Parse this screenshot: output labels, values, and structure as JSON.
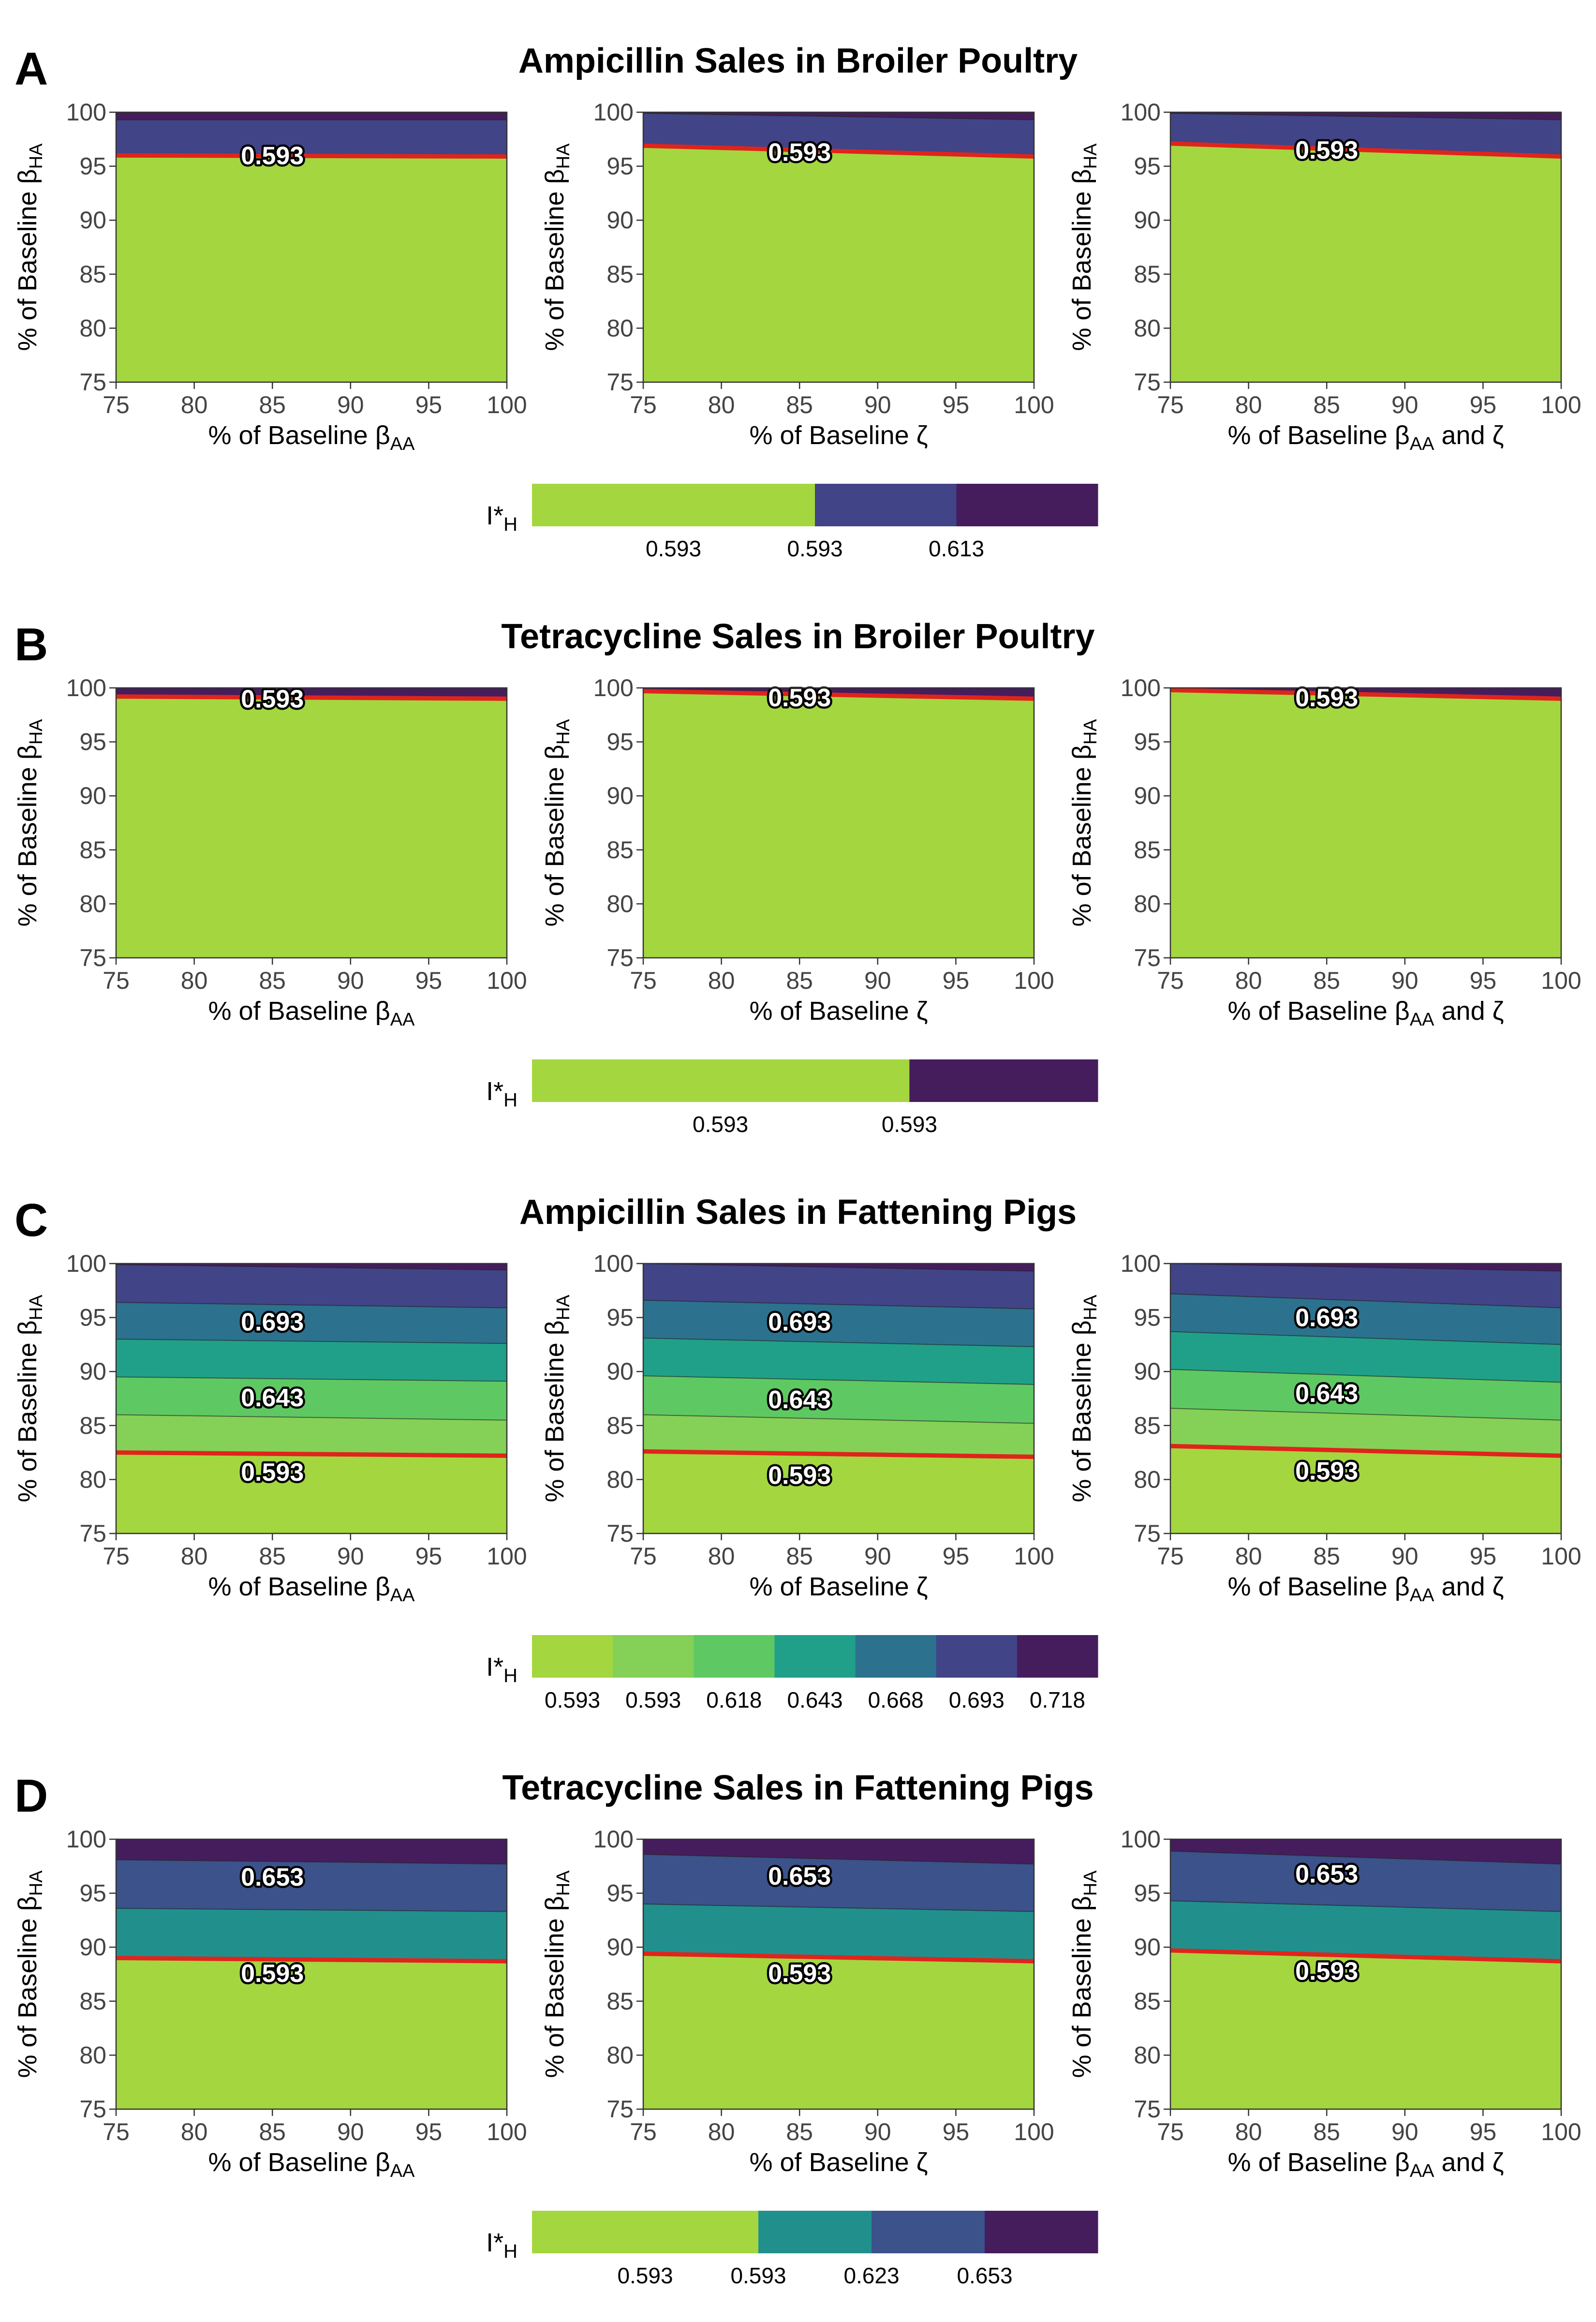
{
  "chart_data": [
    {
      "panel_letter": "A",
      "title": "Ampicillin Sales in Broiler Poultry",
      "type": "filled-contour",
      "metric_label": "I*",
      "metric_sub": "H",
      "x_range": [
        75,
        100
      ],
      "y_range": [
        75,
        100
      ],
      "x_ticks": [
        75,
        80,
        85,
        90,
        95,
        100
      ],
      "y_ticks": [
        75,
        80,
        85,
        90,
        95,
        100
      ],
      "colors": [
        "#a4d63f",
        "#414487",
        "#451d5d"
      ],
      "legend_labels": [
        "0.593",
        "0.593",
        "0.613"
      ],
      "red_color": "#e0241b",
      "subplots": [
        {
          "xlabel": "% of Baseline β",
          "xlabel_sub": "AA",
          "xlabel_suffix": "",
          "ylabel": "% of Baseline β",
          "ylabel_sub": "HA",
          "boundaries": [
            [
              96.0,
              95.9
            ],
            [
              99.3,
              99.3
            ]
          ],
          "red_line": [
            96.0,
            95.9
          ],
          "contour_labels": [
            {
              "x": 85,
              "y": 96.0,
              "text": "0.593"
            }
          ]
        },
        {
          "xlabel": "% of Baseline ζ",
          "xlabel_sub": "",
          "xlabel_suffix": "",
          "ylabel": "% of Baseline β",
          "ylabel_sub": "HA",
          "boundaries": [
            [
              96.9,
              95.9
            ],
            [
              99.9,
              99.3
            ]
          ],
          "red_line": [
            96.9,
            95.9
          ],
          "contour_labels": [
            {
              "x": 85,
              "y": 96.3,
              "text": "0.593"
            }
          ]
        },
        {
          "xlabel": "% of Baseline β",
          "xlabel_sub": "AA",
          "xlabel_suffix": " and ζ",
          "ylabel": "% of Baseline β",
          "ylabel_sub": "HA",
          "boundaries": [
            [
              97.1,
              95.9
            ],
            [
              99.9,
              99.3
            ]
          ],
          "red_line": [
            97.1,
            95.9
          ],
          "contour_labels": [
            {
              "x": 85,
              "y": 96.5,
              "text": "0.593"
            }
          ]
        }
      ]
    },
    {
      "panel_letter": "B",
      "title": "Tetracycline Sales in Broiler Poultry",
      "type": "filled-contour",
      "metric_label": "I*",
      "metric_sub": "H",
      "x_range": [
        75,
        100
      ],
      "y_range": [
        75,
        100
      ],
      "x_ticks": [
        75,
        80,
        85,
        90,
        95,
        100
      ],
      "y_ticks": [
        75,
        80,
        85,
        90,
        95,
        100
      ],
      "colors": [
        "#a4d63f",
        "#451d5d"
      ],
      "legend_labels": [
        "0.593",
        "0.593"
      ],
      "red_color": "#e0241b",
      "subplots": [
        {
          "xlabel": "% of Baseline β",
          "xlabel_sub": "AA",
          "xlabel_suffix": "",
          "ylabel": "% of Baseline β",
          "ylabel_sub": "HA",
          "boundaries": [
            [
              99.2,
              99.0
            ]
          ],
          "red_line": [
            99.2,
            99.0
          ],
          "contour_labels": [
            {
              "x": 85,
              "y": 99.0,
              "text": "0.593"
            }
          ]
        },
        {
          "xlabel": "% of Baseline ζ",
          "xlabel_sub": "",
          "xlabel_suffix": "",
          "ylabel": "% of Baseline β",
          "ylabel_sub": "HA",
          "boundaries": [
            [
              99.7,
              99.0
            ]
          ],
          "red_line": [
            99.7,
            99.0
          ],
          "contour_labels": [
            {
              "x": 85,
              "y": 99.1,
              "text": "0.593"
            }
          ]
        },
        {
          "xlabel": "% of Baseline β",
          "xlabel_sub": "AA",
          "xlabel_suffix": " and ζ",
          "ylabel": "% of Baseline β",
          "ylabel_sub": "HA",
          "boundaries": [
            [
              99.8,
              99.0
            ]
          ],
          "red_line": [
            99.8,
            99.0
          ],
          "contour_labels": [
            {
              "x": 85,
              "y": 99.1,
              "text": "0.593"
            }
          ]
        }
      ]
    },
    {
      "panel_letter": "C",
      "title": "Ampicillin Sales in Fattening Pigs",
      "type": "filled-contour",
      "metric_label": "I*",
      "metric_sub": "H",
      "x_range": [
        75,
        100
      ],
      "y_range": [
        75,
        100
      ],
      "x_ticks": [
        75,
        80,
        85,
        90,
        95,
        100
      ],
      "y_ticks": [
        75,
        80,
        85,
        90,
        95,
        100
      ],
      "colors": [
        "#a4d63f",
        "#85d056",
        "#5ec962",
        "#21a089",
        "#2c728e",
        "#414487",
        "#451d5d"
      ],
      "legend_labels": [
        "0.593",
        "0.593",
        "0.618",
        "0.643",
        "0.668",
        "0.693",
        "0.718"
      ],
      "red_color": "#e0241b",
      "subplots": [
        {
          "xlabel": "% of Baseline β",
          "xlabel_sub": "AA",
          "xlabel_suffix": "",
          "ylabel": "% of Baseline β",
          "ylabel_sub": "HA",
          "boundaries": [
            [
              82.5,
              82.2
            ],
            [
              86.0,
              85.5
            ],
            [
              89.5,
              89.1
            ],
            [
              93.0,
              92.6
            ],
            [
              96.4,
              95.9
            ],
            [
              99.9,
              99.4
            ]
          ],
          "red_line": [
            82.5,
            82.2
          ],
          "contour_labels": [
            {
              "x": 85,
              "y": 94.6,
              "text": "0.693"
            },
            {
              "x": 85,
              "y": 87.6,
              "text": "0.643"
            },
            {
              "x": 85,
              "y": 80.7,
              "text": "0.593"
            }
          ]
        },
        {
          "xlabel": "% of Baseline ζ",
          "xlabel_sub": "",
          "xlabel_suffix": "",
          "ylabel": "% of Baseline β",
          "ylabel_sub": "HA",
          "boundaries": [
            [
              82.6,
              82.1
            ],
            [
              86.0,
              85.2
            ],
            [
              89.6,
              88.8
            ],
            [
              93.1,
              92.3
            ],
            [
              96.6,
              95.8
            ],
            [
              100.0,
              99.3
            ]
          ],
          "red_line": [
            82.6,
            82.1
          ],
          "contour_labels": [
            {
              "x": 85,
              "y": 94.6,
              "text": "0.693"
            },
            {
              "x": 85,
              "y": 87.4,
              "text": "0.643"
            },
            {
              "x": 85,
              "y": 80.4,
              "text": "0.593"
            }
          ]
        },
        {
          "xlabel": "% of Baseline β",
          "xlabel_sub": "AA",
          "xlabel_suffix": " and ζ",
          "ylabel": "% of Baseline β",
          "ylabel_sub": "HA",
          "boundaries": [
            [
              83.1,
              82.2
            ],
            [
              86.6,
              85.5
            ],
            [
              90.2,
              89.0
            ],
            [
              93.7,
              92.5
            ],
            [
              97.2,
              95.9
            ],
            [
              100.0,
              99.3
            ]
          ],
          "red_line": [
            83.1,
            82.2
          ],
          "contour_labels": [
            {
              "x": 85,
              "y": 95.0,
              "text": "0.693"
            },
            {
              "x": 85,
              "y": 88.0,
              "text": "0.643"
            },
            {
              "x": 85,
              "y": 80.8,
              "text": "0.593"
            }
          ]
        }
      ]
    },
    {
      "panel_letter": "D",
      "title": "Tetracycline Sales in Fattening Pigs",
      "type": "filled-contour",
      "metric_label": "I*",
      "metric_sub": "H",
      "x_range": [
        75,
        100
      ],
      "y_range": [
        75,
        100
      ],
      "x_ticks": [
        75,
        80,
        85,
        90,
        95,
        100
      ],
      "y_ticks": [
        75,
        80,
        85,
        90,
        95,
        100
      ],
      "colors": [
        "#a4d63f",
        "#21908d",
        "#3b528b",
        "#451d5d"
      ],
      "legend_labels": [
        "0.593",
        "0.593",
        "0.623",
        "0.653"
      ],
      "red_color": "#e0241b",
      "subplots": [
        {
          "xlabel": "% of Baseline β",
          "xlabel_sub": "AA",
          "xlabel_suffix": "",
          "ylabel": "% of Baseline β",
          "ylabel_sub": "HA",
          "boundaries": [
            [
              89.0,
              88.7
            ],
            [
              93.6,
              93.3
            ],
            [
              98.1,
              97.7
            ]
          ],
          "red_line": [
            89.0,
            88.7
          ],
          "contour_labels": [
            {
              "x": 85,
              "y": 96.5,
              "text": "0.653"
            },
            {
              "x": 85,
              "y": 87.6,
              "text": "0.593"
            }
          ]
        },
        {
          "xlabel": "% of Baseline ζ",
          "xlabel_sub": "",
          "xlabel_suffix": "",
          "ylabel": "% of Baseline β",
          "ylabel_sub": "HA",
          "boundaries": [
            [
              89.4,
              88.7
            ],
            [
              94.0,
              93.3
            ],
            [
              98.6,
              97.7
            ]
          ],
          "red_line": [
            89.4,
            88.7
          ],
          "contour_labels": [
            {
              "x": 85,
              "y": 96.6,
              "text": "0.653"
            },
            {
              "x": 85,
              "y": 87.6,
              "text": "0.593"
            }
          ]
        },
        {
          "xlabel": "% of Baseline β",
          "xlabel_sub": "AA",
          "xlabel_suffix": " and ζ",
          "ylabel": "% of Baseline β",
          "ylabel_sub": "HA",
          "boundaries": [
            [
              89.7,
              88.7
            ],
            [
              94.3,
              93.3
            ],
            [
              98.9,
              97.7
            ]
          ],
          "red_line": [
            89.7,
            88.7
          ],
          "contour_labels": [
            {
              "x": 85,
              "y": 96.8,
              "text": "0.653"
            },
            {
              "x": 85,
              "y": 87.8,
              "text": "0.593"
            }
          ]
        }
      ]
    }
  ]
}
